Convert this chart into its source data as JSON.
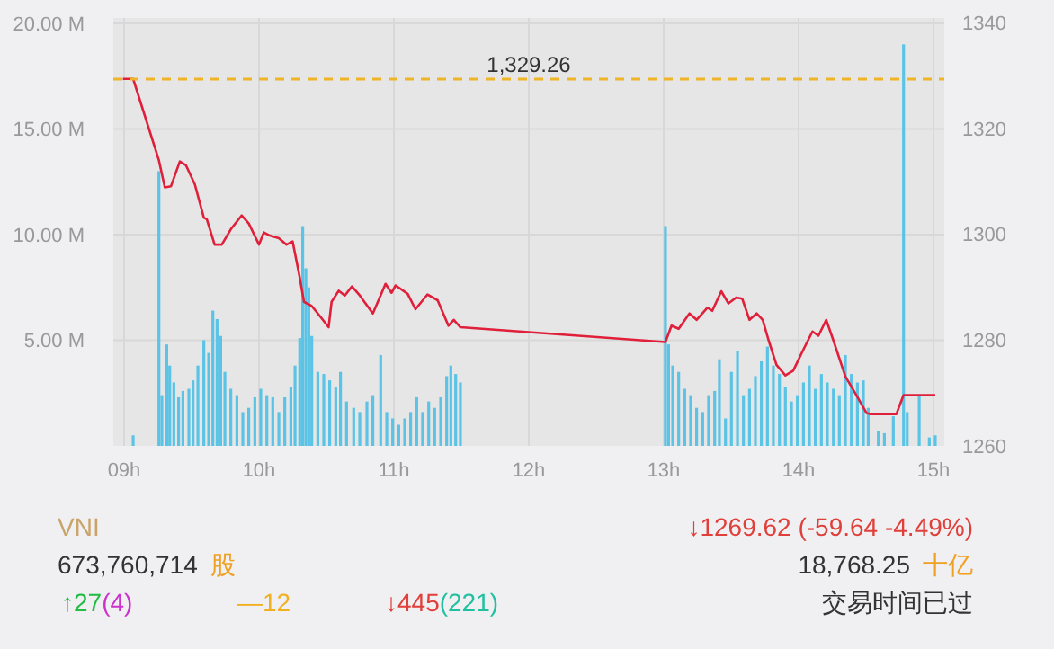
{
  "chart_data": {
    "type": "bar",
    "xlim": [
      8.92,
      15.08
    ],
    "xticks": [
      {
        "value": 9,
        "label": "09h"
      },
      {
        "value": 10,
        "label": "10h"
      },
      {
        "value": 11,
        "label": "11h"
      },
      {
        "value": 12,
        "label": "12h"
      },
      {
        "value": 13,
        "label": "13h"
      },
      {
        "value": 14,
        "label": "14h"
      },
      {
        "value": 15,
        "label": "15h"
      }
    ],
    "ylim": [
      0,
      20.25
    ],
    "yticks": [
      {
        "value": 5,
        "label": "5.00 M"
      },
      {
        "value": 10,
        "label": "10.00 M"
      },
      {
        "value": 15,
        "label": "15.00 M"
      },
      {
        "value": 20,
        "label": "20.00 M"
      }
    ],
    "y2lim": [
      1260,
      1340.8
    ],
    "y2ticks": [
      1260,
      1280,
      1300,
      1320,
      1340
    ],
    "grid": true,
    "series": [
      {
        "color": "#5bc4e6",
        "x": [
          9.067,
          9.258,
          9.28,
          9.316,
          9.338,
          9.369,
          9.404,
          9.436,
          9.48,
          9.511,
          9.547,
          9.591,
          9.627,
          9.658,
          9.689,
          9.716,
          9.747,
          9.791,
          9.836,
          9.88,
          9.924,
          9.969,
          10.013,
          10.058,
          10.102,
          10.147,
          10.191,
          10.236,
          10.267,
          10.302,
          10.324,
          10.347,
          10.369,
          10.391,
          10.436,
          10.48,
          10.524,
          10.569,
          10.604,
          10.649,
          10.702,
          10.747,
          10.8,
          10.844,
          10.902,
          10.947,
          10.991,
          11.036,
          11.08,
          11.124,
          11.169,
          11.213,
          11.258,
          11.302,
          11.347,
          11.391,
          11.422,
          11.458,
          11.493,
          13.013,
          13.036,
          13.067,
          13.111,
          13.156,
          13.2,
          13.244,
          13.289,
          13.333,
          13.378,
          13.413,
          13.458,
          13.502,
          13.547,
          13.591,
          13.636,
          13.68,
          13.724,
          13.769,
          13.813,
          13.858,
          13.902,
          13.947,
          13.991,
          14.036,
          14.08,
          14.124,
          14.169,
          14.213,
          14.258,
          14.302,
          14.347,
          14.391,
          14.436,
          14.48,
          14.516,
          14.591,
          14.636,
          14.702,
          14.778,
          14.805,
          14.894,
          14.969,
          15.013
        ],
        "values": [
          0.5,
          13.0,
          2.4,
          4.8,
          3.8,
          3.0,
          2.3,
          2.6,
          2.7,
          3.1,
          3.8,
          5.0,
          4.4,
          6.4,
          6.0,
          5.2,
          3.5,
          2.7,
          2.4,
          1.6,
          1.8,
          2.3,
          2.7,
          2.4,
          2.3,
          1.6,
          2.3,
          2.8,
          3.8,
          5.1,
          10.4,
          8.4,
          7.5,
          5.2,
          3.5,
          3.4,
          3.1,
          2.8,
          3.5,
          2.1,
          1.8,
          1.6,
          2.1,
          2.4,
          4.3,
          1.6,
          1.3,
          1.0,
          1.3,
          1.6,
          2.3,
          1.6,
          2.1,
          1.8,
          2.3,
          3.3,
          3.8,
          3.4,
          3.0,
          10.4,
          4.8,
          3.8,
          3.5,
          2.7,
          2.4,
          1.8,
          1.6,
          2.4,
          2.6,
          4.1,
          1.3,
          3.5,
          4.5,
          2.4,
          2.7,
          3.3,
          4.0,
          4.7,
          3.8,
          3.4,
          2.8,
          2.1,
          2.4,
          3.0,
          3.8,
          2.7,
          3.4,
          3.0,
          2.7,
          2.4,
          4.3,
          3.4,
          3.0,
          3.1,
          1.8,
          0.7,
          0.6,
          1.4,
          19.0,
          1.6,
          2.4,
          0.4,
          0.5
        ]
      },
      {
        "type": "line",
        "axis": "y2",
        "color": "#e0203a",
        "x": [
          8.991,
          9.067,
          9.258,
          9.302,
          9.347,
          9.413,
          9.458,
          9.524,
          9.591,
          9.613,
          9.671,
          9.724,
          9.791,
          9.871,
          9.924,
          10.0,
          10.036,
          10.08,
          10.147,
          10.204,
          10.249,
          10.302,
          10.333,
          10.391,
          10.436,
          10.516,
          10.538,
          10.591,
          10.636,
          10.689,
          10.747,
          10.844,
          10.938,
          10.982,
          11.013,
          11.102,
          11.16,
          11.249,
          11.324,
          11.404,
          11.444,
          11.493,
          13.013,
          13.058,
          13.111,
          13.191,
          13.244,
          13.325,
          13.36,
          13.427,
          13.48,
          13.538,
          13.582,
          13.636,
          13.689,
          13.734,
          13.778,
          13.836,
          13.902,
          13.96,
          14.036,
          14.103,
          14.147,
          14.205,
          14.258,
          14.347,
          14.414,
          14.503,
          14.534,
          14.725,
          14.778,
          15.013
        ],
        "values": [
          1329.3,
          1329.3,
          1313.9,
          1308.8,
          1309.0,
          1313.7,
          1313.0,
          1309.4,
          1303.1,
          1302.8,
          1298.0,
          1298.0,
          1300.9,
          1303.5,
          1302.0,
          1298.0,
          1300.3,
          1299.7,
          1299.2,
          1298.0,
          1298.6,
          1291.8,
          1287.2,
          1286.4,
          1285.0,
          1282.4,
          1287.2,
          1289.3,
          1288.4,
          1290.1,
          1288.4,
          1285.0,
          1290.6,
          1288.9,
          1290.3,
          1288.7,
          1285.8,
          1288.6,
          1287.5,
          1282.7,
          1283.8,
          1282.4,
          1279.6,
          1282.7,
          1282.1,
          1285.0,
          1283.8,
          1286.1,
          1285.5,
          1289.2,
          1286.9,
          1288.0,
          1287.8,
          1283.8,
          1285.0,
          1283.8,
          1279.9,
          1275.3,
          1273.3,
          1274.2,
          1278.2,
          1281.6,
          1280.8,
          1283.8,
          1279.9,
          1273.1,
          1270.2,
          1266.2,
          1266.0,
          1266.0,
          1269.6,
          1269.6
        ]
      }
    ],
    "ref_lines": [
      {
        "axis": "y2",
        "value": 1329.26,
        "label": "1,329.26",
        "color": "#f0b429",
        "line_style": "dashed"
      }
    ],
    "annotations": [
      "VNI",
      "↓1269.62  (-59.64  -4.49%)",
      "673,760,714",
      "股",
      "18,768.25",
      "十亿",
      "↑27",
      "(4)",
      "—12",
      "↓445",
      "(221)",
      "交易时间已过"
    ]
  }
}
